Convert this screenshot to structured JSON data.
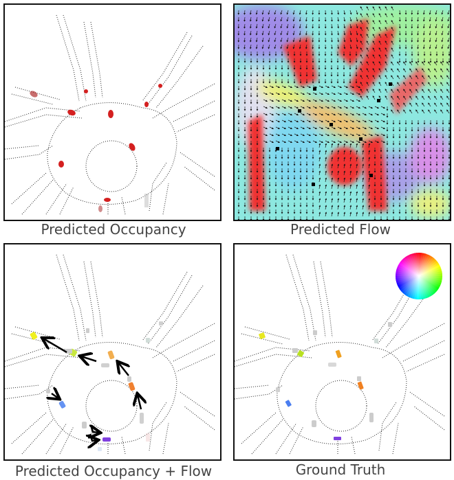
{
  "panels": [
    {
      "id": "occupancy",
      "caption": "Predicted Occupancy"
    },
    {
      "id": "flow",
      "caption": "Predicted Flow"
    },
    {
      "id": "occupancy_flow",
      "caption": "Predicted Occupancy + Flow"
    },
    {
      "id": "ground_truth",
      "caption": "Ground Truth"
    }
  ],
  "colors": {
    "occupancy_red": "#d42020",
    "road_dots": "#222222",
    "panel_border": "#111111",
    "arrow": "#000000",
    "caption_text": "#444444"
  },
  "legend": {
    "icon": "hsv-color-wheel-icon"
  }
}
